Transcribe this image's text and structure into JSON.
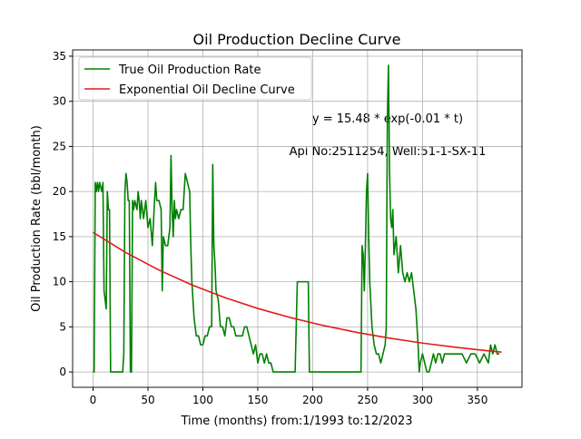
{
  "chart_data": {
    "type": "line",
    "title": "Oil Production Decline Curve",
    "x_label": "Time (months) from:1/1993 to:12/2023",
    "y_label": "Oil Production Rate (bbl/month)",
    "annotations": [
      "y = 15.48 * exp(-0.01 * t)",
      "Api No:2511254, Well:51-1-SX-11"
    ],
    "xlim": [
      -18.6,
      390.6
    ],
    "ylim": [
      -1.7,
      35.7
    ],
    "xticks": [
      0,
      50,
      100,
      150,
      200,
      250,
      300,
      350
    ],
    "yticks": [
      0,
      5,
      10,
      15,
      20,
      25,
      30,
      35
    ],
    "grid": true,
    "legend": "upper left",
    "series": [
      {
        "name": "True Oil Production Rate",
        "color": "#008000",
        "x": [
          0,
          1,
          2,
          3,
          4,
          5,
          6,
          8,
          9,
          10,
          11,
          12,
          13,
          14,
          15,
          16,
          27,
          28,
          29,
          30,
          31,
          32,
          33,
          34,
          35,
          36,
          37,
          38,
          40,
          41,
          42,
          43,
          44,
          46,
          48,
          50,
          52,
          54,
          56,
          57,
          58,
          60,
          62,
          63,
          64,
          66,
          68,
          70,
          71,
          72,
          73,
          74,
          75,
          76,
          78,
          80,
          82,
          84,
          86,
          88,
          89,
          90,
          92,
          94,
          96,
          98,
          100,
          102,
          104,
          106,
          108,
          109,
          110,
          111,
          112,
          114,
          116,
          118,
          120,
          122,
          124,
          126,
          128,
          130,
          132,
          134,
          136,
          138,
          140,
          142,
          144,
          146,
          148,
          150,
          152,
          154,
          156,
          158,
          160,
          162,
          164,
          184,
          186,
          196,
          197,
          244,
          245,
          246,
          247,
          248,
          249,
          250,
          251,
          252,
          254,
          256,
          258,
          260,
          262,
          264,
          266,
          267,
          268,
          269,
          270,
          271,
          272,
          273,
          274,
          276,
          278,
          280,
          282,
          284,
          286,
          288,
          290,
          292,
          294,
          296,
          297,
          298,
          300,
          302,
          304,
          306,
          308,
          310,
          312,
          314,
          316,
          318,
          320,
          324,
          328,
          332,
          336,
          340,
          344,
          348,
          352,
          356,
          360,
          362,
          364,
          366,
          368,
          370
        ],
        "values": [
          0,
          0,
          21,
          20,
          21,
          20,
          21,
          20,
          21,
          9,
          8,
          7,
          20,
          18,
          18,
          0,
          0,
          2,
          20,
          22,
          21,
          19,
          19,
          0,
          0,
          19,
          18,
          19,
          18,
          20,
          19,
          17,
          19,
          17,
          19,
          16,
          17,
          14,
          19,
          21,
          19,
          19,
          18,
          9,
          15,
          14,
          14,
          16,
          24,
          18,
          15,
          19,
          17,
          18,
          17,
          18,
          18,
          22,
          21,
          20,
          14,
          10,
          6,
          4,
          4,
          3,
          3,
          4,
          4,
          5,
          5,
          23,
          14,
          12,
          9,
          8,
          5,
          5,
          4,
          6,
          6,
          5,
          5,
          4,
          4,
          4,
          4,
          5,
          5,
          4,
          3,
          2,
          3,
          1,
          2,
          2,
          1,
          2,
          1,
          1,
          0,
          0,
          10,
          10,
          0,
          0,
          14,
          13,
          9,
          14,
          20,
          22,
          15,
          10,
          5,
          3,
          2,
          2,
          1,
          2,
          3,
          5,
          28,
          34,
          22,
          17,
          16,
          18,
          13,
          15,
          11,
          14,
          11,
          10,
          11,
          10,
          11,
          9,
          7,
          3,
          0,
          1,
          2,
          1,
          0,
          0,
          1,
          2,
          1,
          2,
          2,
          1,
          2,
          2,
          2,
          2,
          2,
          1,
          2,
          2,
          1,
          2,
          1,
          3,
          2,
          3,
          2,
          2
        ]
      },
      {
        "name": "Exponential Oil Decline Curve",
        "color": "#e41a1c",
        "x": [
          0,
          30,
          60,
          90,
          120,
          150,
          180,
          210,
          240,
          270,
          300,
          330,
          360,
          372
        ],
        "values": [
          15.48,
          13.22,
          11.3,
          9.65,
          8.24,
          7.04,
          6.02,
          5.14,
          4.39,
          3.75,
          3.2,
          2.74,
          2.34,
          2.2
        ]
      }
    ]
  }
}
